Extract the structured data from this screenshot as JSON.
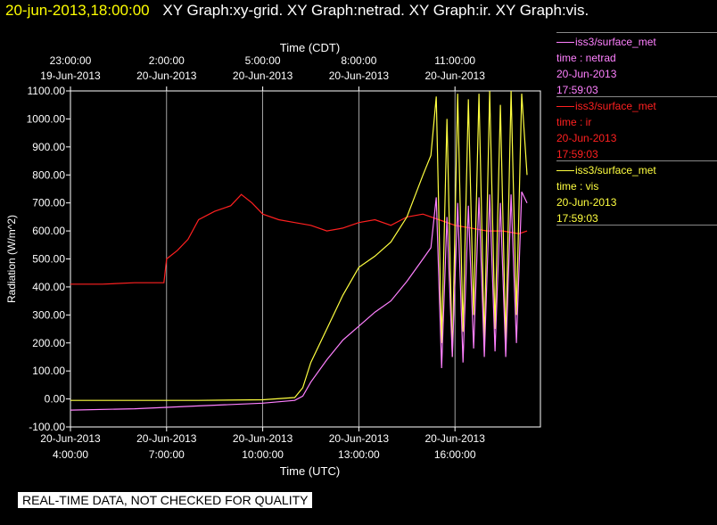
{
  "header": {
    "timestamp": "20-jun-2013,18:00:00",
    "graphs": "XY Graph:xy-grid.  XY Graph:netrad.  XY Graph:ir.  XY Graph:vis."
  },
  "legend": [
    {
      "line1": "iss3/surface_met",
      "line2": "time : netrad",
      "line3": "20-Jun-2013",
      "line4": "17:59:03",
      "color": "#ff80ff"
    },
    {
      "line1": "iss3/surface_met",
      "line2": "time : ir",
      "line3": "20-Jun-2013",
      "line4": "17:59:03",
      "color": "#ff2020"
    },
    {
      "line1": "iss3/surface_met",
      "line2": "time : vis",
      "line3": "20-Jun-2013",
      "line4": "17:59:03",
      "color": "#ffff40"
    }
  ],
  "notice": "REAL-TIME DATA, NOT CHECKED FOR QUALITY",
  "chart_data": {
    "type": "line",
    "ylabel": "Radiation (W/m^2)",
    "xlabel_bottom": "Time (UTC)",
    "xlabel_top": "Time (CDT)",
    "ylim": [
      -100,
      1100
    ],
    "xlim_utc": [
      "2013-06-20 04:00",
      "2013-06-20 18:40"
    ],
    "yticks": [
      "1100.00",
      "1000.00",
      "900.00",
      "800.00",
      "700.00",
      "600.00",
      "500.00",
      "400.00",
      "300.00",
      "200.00",
      "100.00",
      "0.00",
      "-100.00"
    ],
    "xticks_bottom": [
      {
        "date": "20-Jun-2013",
        "time": "4:00:00"
      },
      {
        "date": "20-Jun-2013",
        "time": "7:00:00"
      },
      {
        "date": "20-Jun-2013",
        "time": "10:00:00"
      },
      {
        "date": "20-Jun-2013",
        "time": "13:00:00"
      },
      {
        "date": "20-Jun-2013",
        "time": "16:00:00"
      }
    ],
    "xticks_top": [
      {
        "time": "23:00:00",
        "date": "19-Jun-2013"
      },
      {
        "time": "2:00:00",
        "date": "20-Jun-2013"
      },
      {
        "time": "5:00:00",
        "date": "20-Jun-2013"
      },
      {
        "time": "8:00:00",
        "date": "20-Jun-2013"
      },
      {
        "time": "11:00:00",
        "date": "20-Jun-2013"
      }
    ],
    "grid": true,
    "series": [
      {
        "name": "time : ir",
        "color": "#ff2020",
        "x": [
          "2013-06-20 04:00",
          "2013-06-20 05:00",
          "2013-06-20 06:00",
          "2013-06-20 06:55",
          "2013-06-20 07:00",
          "2013-06-20 07:20",
          "2013-06-20 07:40",
          "2013-06-20 08:00",
          "2013-06-20 08:30",
          "2013-06-20 09:00",
          "2013-06-20 09:20",
          "2013-06-20 09:40",
          "2013-06-20 10:00",
          "2013-06-20 10:30",
          "2013-06-20 11:00",
          "2013-06-20 11:30",
          "2013-06-20 12:00",
          "2013-06-20 12:30",
          "2013-06-20 13:00",
          "2013-06-20 13:30",
          "2013-06-20 14:00",
          "2013-06-20 14:30",
          "2013-06-20 15:00",
          "2013-06-20 15:30",
          "2013-06-20 16:00",
          "2013-06-20 16:30",
          "2013-06-20 17:00",
          "2013-06-20 17:30",
          "2013-06-20 18:00",
          "2013-06-20 18:15"
        ],
        "values": [
          410,
          410,
          415,
          415,
          500,
          530,
          570,
          640,
          670,
          690,
          730,
          700,
          660,
          640,
          630,
          620,
          600,
          610,
          630,
          640,
          620,
          650,
          660,
          640,
          620,
          610,
          600,
          600,
          590,
          600
        ]
      },
      {
        "name": "time : vis",
        "color": "#ffff40",
        "x": [
          "2013-06-20 04:00",
          "2013-06-20 06:00",
          "2013-06-20 08:00",
          "2013-06-20 10:00",
          "2013-06-20 11:00",
          "2013-06-20 11:15",
          "2013-06-20 11:30",
          "2013-06-20 12:00",
          "2013-06-20 12:30",
          "2013-06-20 13:00",
          "2013-06-20 13:30",
          "2013-06-20 14:00",
          "2013-06-20 14:30",
          "2013-06-20 15:00",
          "2013-06-20 15:15",
          "2013-06-20 15:25",
          "2013-06-20 15:35",
          "2013-06-20 15:45",
          "2013-06-20 15:55",
          "2013-06-20 16:05",
          "2013-06-20 16:15",
          "2013-06-20 16:25",
          "2013-06-20 16:35",
          "2013-06-20 16:45",
          "2013-06-20 16:55",
          "2013-06-20 17:05",
          "2013-06-20 17:15",
          "2013-06-20 17:25",
          "2013-06-20 17:35",
          "2013-06-20 17:45",
          "2013-06-20 17:55",
          "2013-06-20 18:05",
          "2013-06-20 18:15"
        ],
        "values": [
          -5,
          -5,
          -5,
          -3,
          5,
          40,
          130,
          250,
          370,
          470,
          510,
          560,
          650,
          800,
          870,
          1080,
          200,
          1000,
          150,
          1090,
          240,
          1070,
          300,
          1090,
          200,
          1100,
          250,
          1050,
          200,
          1100,
          300,
          1090,
          800
        ]
      },
      {
        "name": "time : netrad",
        "color": "#ff80ff",
        "x": [
          "2013-06-20 04:00",
          "2013-06-20 06:00",
          "2013-06-20 08:00",
          "2013-06-20 10:00",
          "2013-06-20 11:00",
          "2013-06-20 11:15",
          "2013-06-20 11:30",
          "2013-06-20 12:00",
          "2013-06-20 12:30",
          "2013-06-20 13:00",
          "2013-06-20 13:30",
          "2013-06-20 14:00",
          "2013-06-20 14:30",
          "2013-06-20 15:00",
          "2013-06-20 15:15",
          "2013-06-20 15:25",
          "2013-06-20 15:35",
          "2013-06-20 15:45",
          "2013-06-20 15:55",
          "2013-06-20 16:05",
          "2013-06-20 16:15",
          "2013-06-20 16:25",
          "2013-06-20 16:35",
          "2013-06-20 16:45",
          "2013-06-20 16:55",
          "2013-06-20 17:05",
          "2013-06-20 17:15",
          "2013-06-20 17:25",
          "2013-06-20 17:35",
          "2013-06-20 17:45",
          "2013-06-20 17:55",
          "2013-06-20 18:05",
          "2013-06-20 18:15"
        ],
        "values": [
          -40,
          -35,
          -25,
          -15,
          -5,
          10,
          60,
          140,
          210,
          260,
          310,
          350,
          420,
          500,
          540,
          720,
          110,
          650,
          150,
          700,
          130,
          690,
          180,
          720,
          150,
          730,
          170,
          700,
          150,
          730,
          200,
          740,
          700
        ]
      }
    ]
  }
}
